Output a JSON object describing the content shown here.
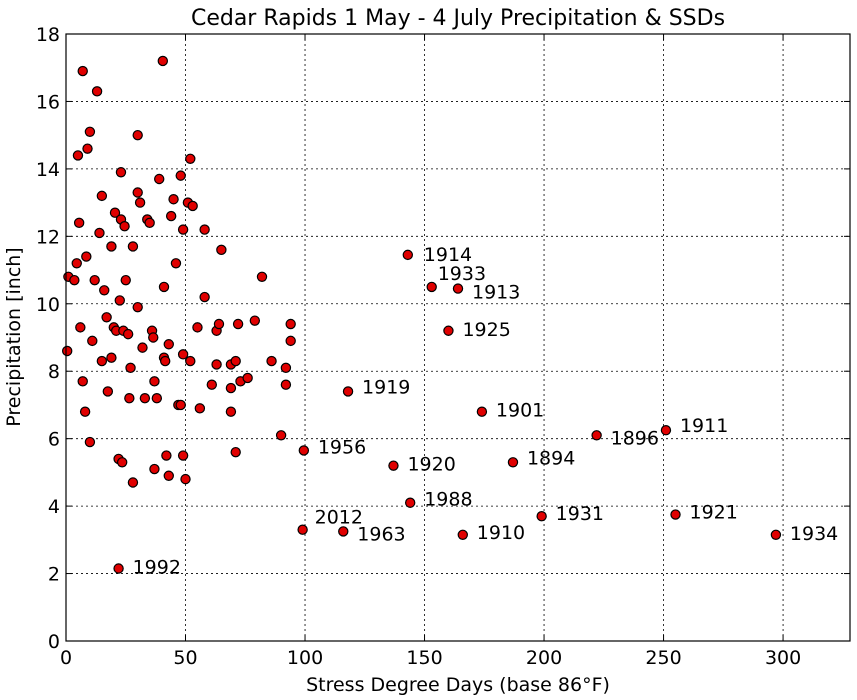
{
  "chart_data": {
    "type": "scatter",
    "title": "Cedar Rapids 1 May - 4 July Precipitation & SSDs",
    "xlabel": "Stress Degree Days (base 86°F)",
    "ylabel": "Precipitation [inch]",
    "xlim": [
      0,
      328
    ],
    "ylim": [
      0,
      18
    ],
    "xticks": [
      0,
      50,
      100,
      150,
      200,
      250,
      300
    ],
    "yticks": [
      0,
      2,
      4,
      6,
      8,
      10,
      12,
      14,
      16,
      18
    ],
    "grid": true,
    "marker_color": "#e00000",
    "points": [
      {
        "x": 0.5,
        "y": 8.6
      },
      {
        "x": 1,
        "y": 10.8
      },
      {
        "x": 3.5,
        "y": 10.7
      },
      {
        "x": 4.5,
        "y": 11.2
      },
      {
        "x": 5,
        "y": 14.4
      },
      {
        "x": 5.5,
        "y": 12.4
      },
      {
        "x": 6,
        "y": 9.3
      },
      {
        "x": 7,
        "y": 16.9
      },
      {
        "x": 7,
        "y": 7.7
      },
      {
        "x": 8,
        "y": 6.8
      },
      {
        "x": 8.5,
        "y": 11.4
      },
      {
        "x": 9,
        "y": 14.6
      },
      {
        "x": 10,
        "y": 15.1
      },
      {
        "x": 10,
        "y": 5.9
      },
      {
        "x": 11,
        "y": 8.9
      },
      {
        "x": 12,
        "y": 10.7
      },
      {
        "x": 13,
        "y": 16.3
      },
      {
        "x": 14,
        "y": 12.1
      },
      {
        "x": 15,
        "y": 8.3
      },
      {
        "x": 15,
        "y": 13.2
      },
      {
        "x": 16,
        "y": 10.4
      },
      {
        "x": 17,
        "y": 9.6
      },
      {
        "x": 17.5,
        "y": 7.4
      },
      {
        "x": 19,
        "y": 8.4
      },
      {
        "x": 19,
        "y": 11.7
      },
      {
        "x": 20,
        "y": 9.3
      },
      {
        "x": 20.5,
        "y": 12.7
      },
      {
        "x": 21,
        "y": 9.2
      },
      {
        "x": 22,
        "y": 5.4
      },
      {
        "x": 22.5,
        "y": 10.1
      },
      {
        "x": 23,
        "y": 12.5
      },
      {
        "x": 23,
        "y": 13.9
      },
      {
        "x": 23.5,
        "y": 5.3
      },
      {
        "x": 24,
        "y": 9.2
      },
      {
        "x": 24.5,
        "y": 12.3
      },
      {
        "x": 25,
        "y": 10.7
      },
      {
        "x": 26,
        "y": 9.1
      },
      {
        "x": 26.5,
        "y": 7.2
      },
      {
        "x": 27,
        "y": 8.1
      },
      {
        "x": 28,
        "y": 11.7
      },
      {
        "x": 28,
        "y": 4.7
      },
      {
        "x": 30,
        "y": 9.9
      },
      {
        "x": 30,
        "y": 15
      },
      {
        "x": 30,
        "y": 13.3
      },
      {
        "x": 31,
        "y": 13
      },
      {
        "x": 32,
        "y": 8.7
      },
      {
        "x": 33,
        "y": 7.2
      },
      {
        "x": 34,
        "y": 12.5
      },
      {
        "x": 35,
        "y": 12.4
      },
      {
        "x": 36,
        "y": 9.2
      },
      {
        "x": 36.5,
        "y": 9
      },
      {
        "x": 37,
        "y": 7.7
      },
      {
        "x": 37,
        "y": 5.1
      },
      {
        "x": 38,
        "y": 7.2
      },
      {
        "x": 39,
        "y": 13.7
      },
      {
        "x": 40.5,
        "y": 17.2
      },
      {
        "x": 41,
        "y": 10.5
      },
      {
        "x": 41,
        "y": 8.4
      },
      {
        "x": 41.5,
        "y": 8.3
      },
      {
        "x": 42,
        "y": 5.5
      },
      {
        "x": 43,
        "y": 8.8
      },
      {
        "x": 43,
        "y": 4.9
      },
      {
        "x": 44,
        "y": 12.6
      },
      {
        "x": 45,
        "y": 13.1
      },
      {
        "x": 46,
        "y": 11.2
      },
      {
        "x": 47,
        "y": 7
      },
      {
        "x": 48,
        "y": 13.8
      },
      {
        "x": 48,
        "y": 7
      },
      {
        "x": 49,
        "y": 12.2
      },
      {
        "x": 49,
        "y": 8.5
      },
      {
        "x": 49,
        "y": 5.5
      },
      {
        "x": 50,
        "y": 4.8
      },
      {
        "x": 51,
        "y": 13
      },
      {
        "x": 52,
        "y": 14.3
      },
      {
        "x": 52,
        "y": 8.3
      },
      {
        "x": 53,
        "y": 12.9
      },
      {
        "x": 55,
        "y": 9.3
      },
      {
        "x": 56,
        "y": 6.9
      },
      {
        "x": 58,
        "y": 12.2
      },
      {
        "x": 58,
        "y": 10.2
      },
      {
        "x": 61,
        "y": 7.6
      },
      {
        "x": 63,
        "y": 9.2
      },
      {
        "x": 63,
        "y": 8.2
      },
      {
        "x": 64,
        "y": 9.4
      },
      {
        "x": 65,
        "y": 11.6
      },
      {
        "x": 69,
        "y": 8.2
      },
      {
        "x": 69,
        "y": 7.5
      },
      {
        "x": 69,
        "y": 6.8
      },
      {
        "x": 71,
        "y": 8.3
      },
      {
        "x": 71,
        "y": 5.6
      },
      {
        "x": 72,
        "y": 9.4
      },
      {
        "x": 73,
        "y": 7.7
      },
      {
        "x": 76,
        "y": 7.8
      },
      {
        "x": 79,
        "y": 9.5
      },
      {
        "x": 82,
        "y": 10.8
      },
      {
        "x": 86,
        "y": 8.3
      },
      {
        "x": 90,
        "y": 6.1
      },
      {
        "x": 92,
        "y": 8.1
      },
      {
        "x": 92,
        "y": 7.6
      },
      {
        "x": 94,
        "y": 9.4
      },
      {
        "x": 94,
        "y": 8.9
      },
      {
        "x": 99.5,
        "y": 5.65
      },
      {
        "x": 99,
        "y": 3.3
      },
      {
        "x": 116,
        "y": 3.25
      },
      {
        "x": 118,
        "y": 7.4
      },
      {
        "x": 137,
        "y": 5.2
      },
      {
        "x": 143,
        "y": 11.45
      },
      {
        "x": 144,
        "y": 4.1
      },
      {
        "x": 153,
        "y": 10.5
      },
      {
        "x": 160,
        "y": 9.2
      },
      {
        "x": 164,
        "y": 10.45
      },
      {
        "x": 166,
        "y": 3.15
      },
      {
        "x": 174,
        "y": 6.8
      },
      {
        "x": 187,
        "y": 5.3
      },
      {
        "x": 199,
        "y": 3.7
      },
      {
        "x": 222,
        "y": 6.1
      },
      {
        "x": 251,
        "y": 6.25
      },
      {
        "x": 255,
        "y": 3.75
      },
      {
        "x": 297,
        "y": 3.15
      },
      {
        "x": 22,
        "y": 2.15
      }
    ],
    "annotations": [
      {
        "x": 143,
        "y": 11.45,
        "label": "1914",
        "dx": 10,
        "dy": 0
      },
      {
        "x": 153,
        "y": 10.5,
        "label": "1933",
        "dx": 0,
        "dy": -13
      },
      {
        "x": 164,
        "y": 10.45,
        "label": "1913",
        "dx": 8,
        "dy": 4
      },
      {
        "x": 160,
        "y": 9.2,
        "label": "1925",
        "dx": 8,
        "dy": -1
      },
      {
        "x": 118,
        "y": 7.4,
        "label": "1919",
        "dx": 8,
        "dy": -4
      },
      {
        "x": 174,
        "y": 6.8,
        "label": "1901",
        "dx": 8,
        "dy": -1
      },
      {
        "x": 99.5,
        "y": 5.65,
        "label": "1956",
        "dx": 8,
        "dy": -3
      },
      {
        "x": 137,
        "y": 5.2,
        "label": "1920",
        "dx": 8,
        "dy": -1
      },
      {
        "x": 187,
        "y": 5.3,
        "label": "1894",
        "dx": 8,
        "dy": -4
      },
      {
        "x": 222,
        "y": 6.1,
        "label": "1896",
        "dx": 8,
        "dy": 3
      },
      {
        "x": 251,
        "y": 6.25,
        "label": "1911",
        "dx": 8,
        "dy": -4
      },
      {
        "x": 144,
        "y": 4.1,
        "label": "1988",
        "dx": 8,
        "dy": -3
      },
      {
        "x": 99,
        "y": 3.3,
        "label": "2012",
        "dx": 6,
        "dy": -12
      },
      {
        "x": 116,
        "y": 3.25,
        "label": "1963",
        "dx": 8,
        "dy": 3
      },
      {
        "x": 166,
        "y": 3.15,
        "label": "1910",
        "dx": 8,
        "dy": -2
      },
      {
        "x": 199,
        "y": 3.7,
        "label": "1931",
        "dx": 8,
        "dy": -2
      },
      {
        "x": 255,
        "y": 3.75,
        "label": "1921",
        "dx": 8,
        "dy": -2
      },
      {
        "x": 297,
        "y": 3.15,
        "label": "1934",
        "dx": 8,
        "dy": -1
      },
      {
        "x": 22,
        "y": 2.15,
        "label": "1992",
        "dx": 8,
        "dy": -1
      }
    ]
  }
}
